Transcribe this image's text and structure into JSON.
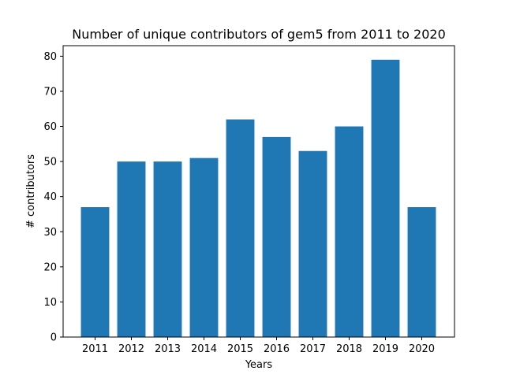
{
  "chart_data": {
    "type": "bar",
    "title": "Number of unique contributors of gem5 from 2011 to 2020",
    "xlabel": "Years",
    "ylabel": "# contributors",
    "categories": [
      "2011",
      "2012",
      "2013",
      "2014",
      "2015",
      "2016",
      "2017",
      "2018",
      "2019",
      "2020"
    ],
    "values": [
      37,
      50,
      50,
      51,
      62,
      57,
      53,
      60,
      79,
      37
    ],
    "ylim": [
      0,
      83
    ],
    "yticks": [
      0,
      10,
      20,
      30,
      40,
      50,
      60,
      70,
      80
    ],
    "grid": false,
    "legend": "none",
    "bar_color": "#1f77b4"
  }
}
